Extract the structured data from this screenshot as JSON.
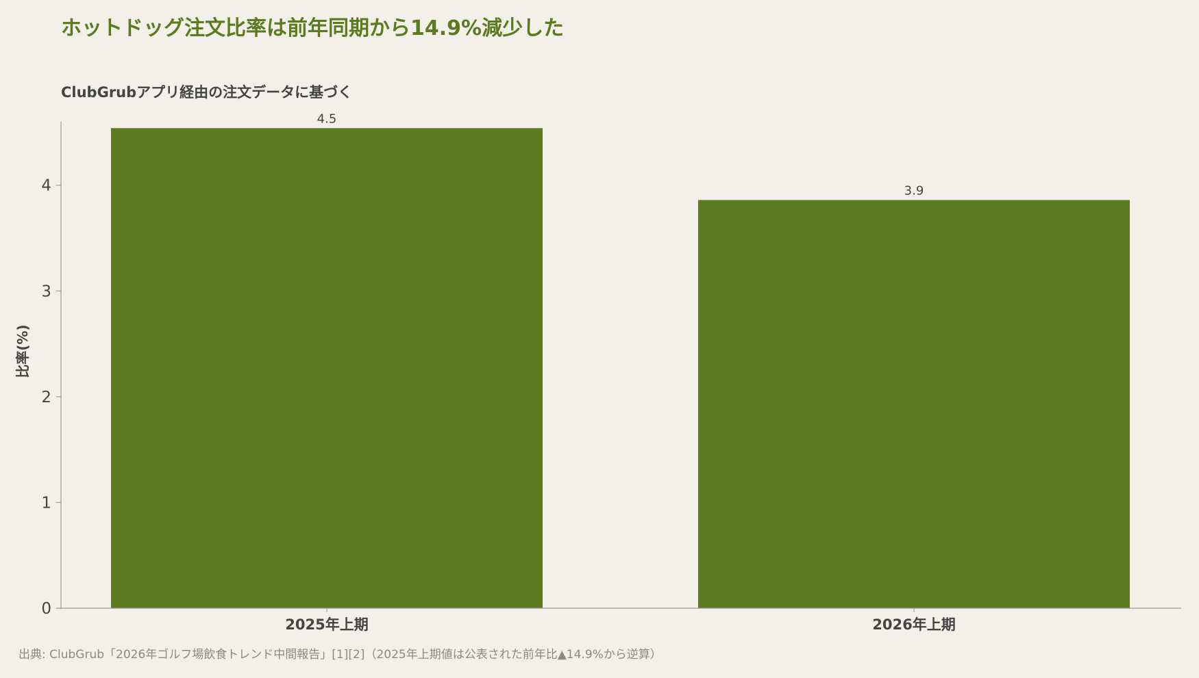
{
  "title": "ホットドッグ注文比率は前年同期から14.9%減少した",
  "subtitle": "ClubGrubアプリ経由の注文データに基づく",
  "source": "出典: ClubGrub「2026年ゴルフ場飲食トレンド中間報告」[1][2]（2025年上期値は公表された前年比▲14.9%から逆算）",
  "colors": {
    "bar": "#5c7a20",
    "title": "#5c7a20",
    "text": "#444444",
    "axis": "#9a9a94",
    "background": "#f3f0e9"
  },
  "chart_data": {
    "type": "bar",
    "categories": [
      "2025年上期",
      "2026年上期"
    ],
    "values": [
      4.54,
      3.86
    ],
    "value_labels": [
      "4.5",
      "3.9"
    ],
    "ylabel": "比率(%)",
    "ylim": [
      0,
      4.6
    ],
    "yticks": [
      0,
      1,
      2,
      3,
      4
    ],
    "grid": false,
    "legend": "none"
  }
}
